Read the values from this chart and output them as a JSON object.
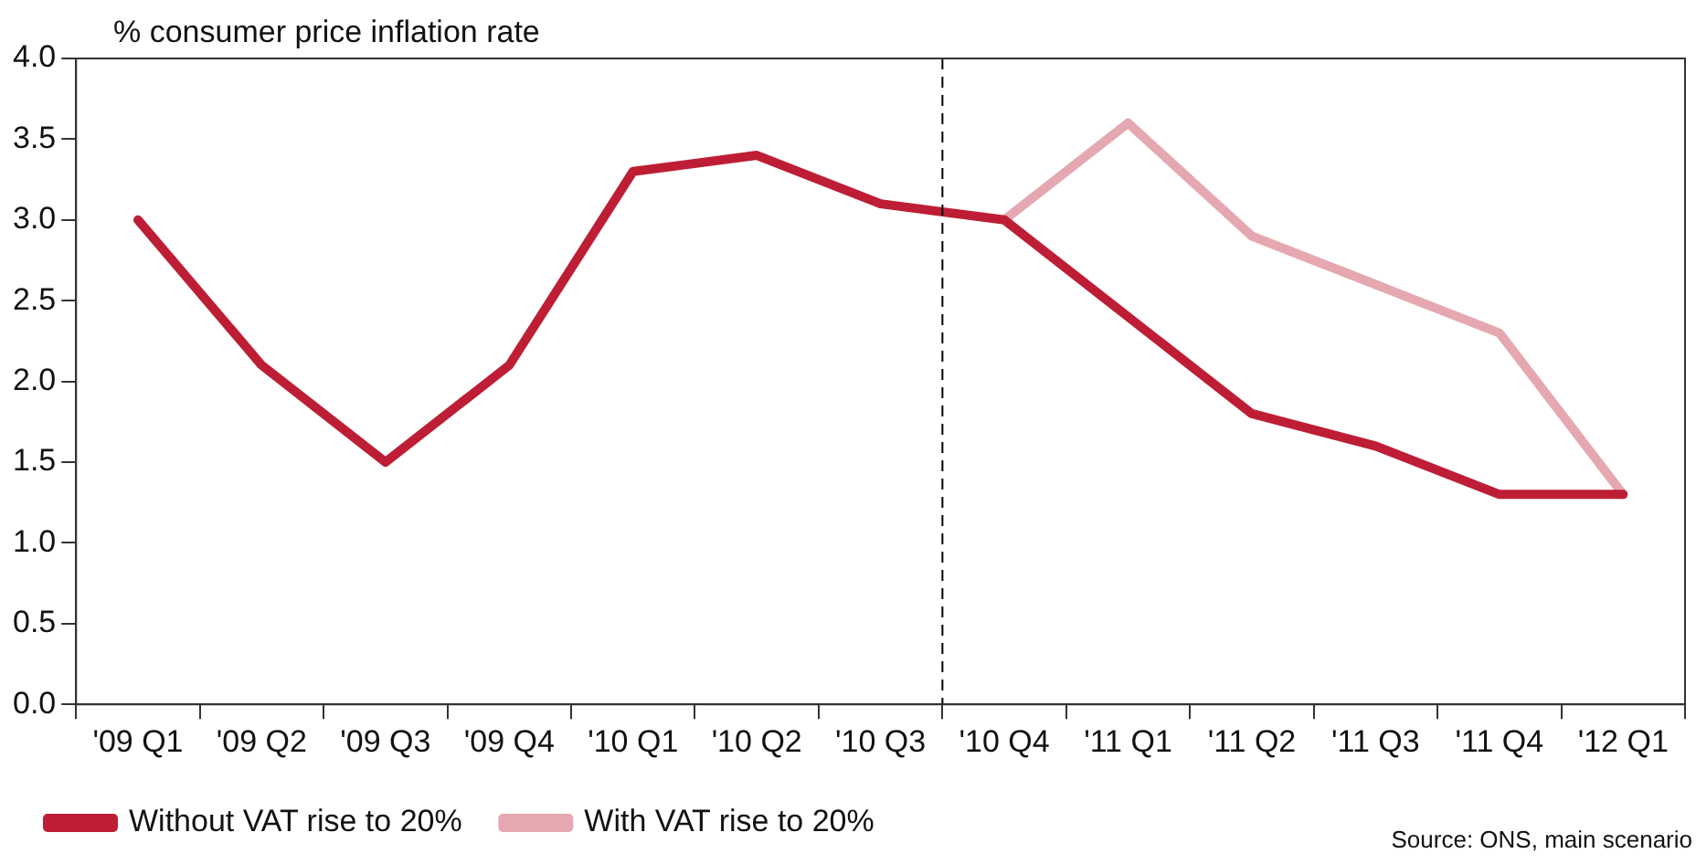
{
  "chart_data": {
    "type": "line",
    "ylabel": "% consumer price inflation rate",
    "categories": [
      "'09 Q1",
      "'09 Q2",
      "'09 Q3",
      "'09 Q4",
      "'10 Q1",
      "'10 Q2",
      "'10 Q3",
      "'10 Q4",
      "'11 Q1",
      "'11 Q2",
      "'11 Q3",
      "'11 Q4",
      "'12 Q1"
    ],
    "series": [
      {
        "name": "Without VAT rise to 20%",
        "color": "#be1e35",
        "values": [
          3.0,
          2.1,
          1.5,
          2.1,
          3.3,
          3.4,
          3.1,
          3.0,
          2.4,
          1.8,
          1.6,
          1.3,
          1.3
        ]
      },
      {
        "name": "With VAT rise to 20%",
        "color": "#e5a8b0",
        "values": [
          null,
          null,
          null,
          null,
          null,
          null,
          null,
          3.0,
          3.6,
          2.9,
          2.6,
          2.3,
          1.3
        ]
      }
    ],
    "ylim": [
      0,
      4
    ],
    "yticks": [
      {
        "value": 0,
        "label": "0.0"
      },
      {
        "value": 0.5,
        "label": "0.5"
      },
      {
        "value": 1,
        "label": "1.0"
      },
      {
        "value": 1.5,
        "label": "1.5"
      },
      {
        "value": 2,
        "label": "2.0"
      },
      {
        "value": 2.5,
        "label": "2.5"
      },
      {
        "value": 3,
        "label": "3.0"
      },
      {
        "value": 3.5,
        "label": "3.5"
      },
      {
        "value": 4,
        "label": "4.0"
      }
    ],
    "grid": false,
    "legend": "bottom left",
    "marker": "none",
    "line_style": "solid",
    "annotations": [
      "Source: ONS, main scenario"
    ]
  }
}
